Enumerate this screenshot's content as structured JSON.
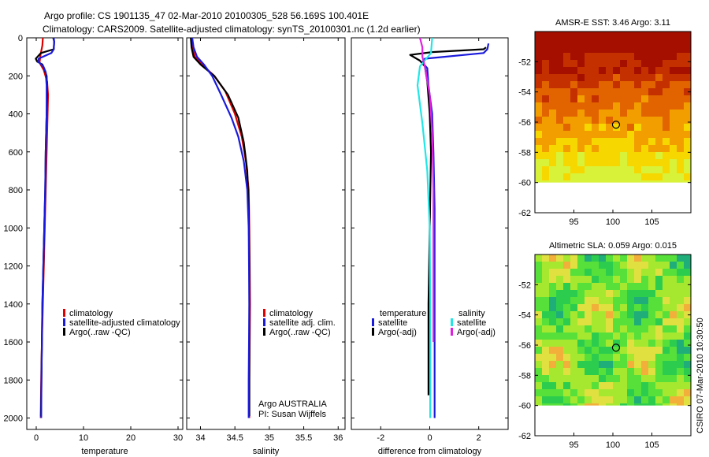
{
  "header": {
    "line1": "Argo profile: CS 1901135_47 02-Mar-2010 20100305_528 56.169S 100.401E",
    "line2": "Climatology: CARS2009. Satellite-adjusted climatology: synTS_20100301.nc (1.2d earlier)"
  },
  "side_label": "CSIRO 07-Mar-2010 10:30:50",
  "colors": {
    "red": "#e00000",
    "blue": "#1a1adc",
    "black": "#000000",
    "cyan": "#22e6e6",
    "magenta": "#e020e0"
  },
  "chart_data": [
    {
      "type": "line",
      "id": "temperature",
      "xlabel": "temperature",
      "ylabel": "",
      "xlim": [
        -2,
        31
      ],
      "ylim": [
        2060,
        0
      ],
      "xticks": [
        0,
        10,
        20,
        30
      ],
      "yticks": [
        0,
        200,
        400,
        600,
        800,
        1000,
        1200,
        1400,
        1600,
        1800,
        2000
      ],
      "legend": {
        "placement": "lower-right",
        "entries": [
          "climatology",
          "satellite-adjusted climatology",
          "Argo(..raw -QC)"
        ]
      },
      "series": [
        {
          "name": "climatology",
          "color": "red",
          "points": [
            [
              1.4,
              0
            ],
            [
              1.3,
              40
            ],
            [
              0.9,
              90
            ],
            [
              0.7,
              130
            ],
            [
              1.6,
              170
            ],
            [
              2.3,
              230
            ],
            [
              2.5,
              300
            ],
            [
              2.4,
              400
            ],
            [
              2.2,
              600
            ],
            [
              2.0,
              800
            ],
            [
              1.8,
              1000
            ],
            [
              1.6,
              1200
            ],
            [
              1.4,
              1400
            ],
            [
              1.2,
              1600
            ],
            [
              1.05,
              1800
            ],
            [
              0.95,
              2000
            ]
          ]
        },
        {
          "name": "Argo(..raw -QC)",
          "color": "black",
          "points": [
            [
              3.6,
              0
            ],
            [
              3.8,
              20
            ],
            [
              3.7,
              60
            ],
            [
              1.0,
              80
            ],
            [
              -0.1,
              110
            ],
            [
              0.2,
              125
            ],
            [
              1.3,
              140
            ],
            [
              1.8,
              170
            ],
            [
              2.2,
              200
            ],
            [
              2.3,
              300
            ],
            [
              2.2,
              400
            ],
            [
              2.0,
              600
            ],
            [
              1.9,
              800
            ],
            [
              1.7,
              1000
            ],
            [
              1.5,
              1200
            ],
            [
              1.3,
              1400
            ],
            [
              1.2,
              1600
            ],
            [
              1.1,
              1800
            ],
            [
              1.0,
              1990
            ]
          ]
        },
        {
          "name": "satellite-adjusted climatology",
          "color": "blue",
          "points": [
            [
              3.7,
              0
            ],
            [
              3.8,
              20
            ],
            [
              3.7,
              60
            ],
            [
              3.2,
              80
            ],
            [
              0.5,
              110
            ],
            [
              0.4,
              125
            ],
            [
              1.5,
              150
            ],
            [
              2.0,
              180
            ],
            [
              2.2,
              250
            ],
            [
              2.2,
              400
            ],
            [
              2.0,
              600
            ],
            [
              1.9,
              800
            ],
            [
              1.7,
              1000
            ],
            [
              1.5,
              1200
            ],
            [
              1.3,
              1400
            ],
            [
              1.2,
              1600
            ],
            [
              1.1,
              1800
            ],
            [
              1.05,
              2000
            ]
          ]
        }
      ]
    },
    {
      "type": "line",
      "id": "salinity",
      "xlabel": "salinity",
      "ylabel": "",
      "xlim": [
        33.8,
        36.1
      ],
      "ylim": [
        2060,
        0
      ],
      "xticks": [
        34,
        34.5,
        35,
        35.5,
        36
      ],
      "yticks": [
        0,
        200,
        400,
        600,
        800,
        1000,
        1200,
        1400,
        1600,
        1800,
        2000
      ],
      "legend": {
        "placement": "lower-right",
        "entries": [
          "climatology",
          "satellite adj. clim.",
          "Argo(..raw -QC)"
        ]
      },
      "annotations": [
        "Argo AUSTRALIA",
        "PI: Susan Wijffels"
      ],
      "series": [
        {
          "name": "climatology",
          "color": "red",
          "points": [
            [
              33.87,
              0
            ],
            [
              33.88,
              50
            ],
            [
              33.92,
              100
            ],
            [
              34.02,
              140
            ],
            [
              34.2,
              200
            ],
            [
              34.36,
              280
            ],
            [
              34.5,
              400
            ],
            [
              34.6,
              520
            ],
            [
              34.66,
              650
            ],
            [
              34.7,
              800
            ],
            [
              34.71,
              1000
            ],
            [
              34.72,
              1400
            ],
            [
              34.71,
              1800
            ],
            [
              34.71,
              2000
            ]
          ]
        },
        {
          "name": "Argo(..raw -QC)",
          "color": "black",
          "points": [
            [
              33.86,
              0
            ],
            [
              33.87,
              50
            ],
            [
              33.9,
              100
            ],
            [
              34.0,
              140
            ],
            [
              34.2,
              200
            ],
            [
              34.4,
              300
            ],
            [
              34.55,
              420
            ],
            [
              34.63,
              550
            ],
            [
              34.68,
              700
            ],
            [
              34.7,
              900
            ],
            [
              34.71,
              1200
            ],
            [
              34.71,
              1600
            ],
            [
              34.71,
              1990
            ]
          ]
        },
        {
          "name": "satellite adj. clim.",
          "color": "blue",
          "points": [
            [
              33.88,
              0
            ],
            [
              33.9,
              50
            ],
            [
              33.95,
              100
            ],
            [
              34.05,
              140
            ],
            [
              34.17,
              200
            ],
            [
              34.3,
              300
            ],
            [
              34.45,
              420
            ],
            [
              34.55,
              520
            ],
            [
              34.63,
              650
            ],
            [
              34.68,
              800
            ],
            [
              34.7,
              1000
            ],
            [
              34.71,
              1400
            ],
            [
              34.7,
              1800
            ],
            [
              34.7,
              2000
            ]
          ]
        }
      ]
    },
    {
      "type": "line",
      "id": "difference",
      "xlabel": "difference from climatology",
      "ylabel": "",
      "xlim": [
        -3.2,
        3.2
      ],
      "ylim": [
        2060,
        0
      ],
      "xticks": [
        -2,
        0,
        2
      ],
      "yticks": [
        0,
        200,
        400,
        600,
        800,
        1000,
        1200,
        1400,
        1600,
        1800,
        2000
      ],
      "legend": {
        "placement": "lower-center",
        "columns": [
          [
            "temperature",
            "satellite",
            "Argo(-adj)"
          ],
          [
            "salinity",
            "satellite",
            "Argo(-adj)"
          ]
        ]
      },
      "series": [
        {
          "name": "temperature satellite",
          "color": "blue",
          "points": [
            [
              2.4,
              30
            ],
            [
              2.35,
              60
            ],
            [
              2.2,
              80
            ],
            [
              -0.2,
              110
            ],
            [
              -0.3,
              130
            ],
            [
              -0.1,
              160
            ],
            [
              -0.05,
              250
            ],
            [
              0.1,
              400
            ],
            [
              0.15,
              600
            ],
            [
              0.2,
              900
            ],
            [
              0.2,
              1200
            ],
            [
              0.2,
              1500
            ],
            [
              0.2,
              1800
            ],
            [
              0.2,
              2000
            ]
          ]
        },
        {
          "name": "temperature Argo(-adj)",
          "color": "black",
          "points": [
            [
              2.3,
              50
            ],
            [
              2.2,
              60
            ],
            [
              0.1,
              75
            ],
            [
              -0.8,
              90
            ],
            [
              -0.4,
              120
            ],
            [
              -0.2,
              150
            ],
            [
              -0.1,
              230
            ],
            [
              0.0,
              400
            ],
            [
              0.05,
              600
            ],
            [
              0.0,
              1000
            ],
            [
              -0.05,
              1400
            ],
            [
              -0.05,
              1800
            ],
            [
              -0.05,
              1880
            ]
          ]
        },
        {
          "name": "salinity satellite",
          "color": "cyan",
          "points": [
            [
              0.1,
              0
            ],
            [
              0.05,
              80
            ],
            [
              -0.4,
              150
            ],
            [
              -0.5,
              250
            ],
            [
              -0.3,
              450
            ],
            [
              -0.1,
              700
            ],
            [
              0.0,
              1000
            ],
            [
              0.02,
              1400
            ],
            [
              0.02,
              2000
            ]
          ]
        },
        {
          "name": "salinity Argo(-adj)",
          "color": "magenta",
          "points": [
            [
              -0.4,
              0
            ],
            [
              -0.3,
              50
            ],
            [
              -0.3,
              100
            ],
            [
              -0.2,
              150
            ],
            [
              0.0,
              300
            ],
            [
              0.1,
              500
            ],
            [
              0.15,
              800
            ],
            [
              0.15,
              1200
            ],
            [
              0.15,
              1600
            ]
          ]
        }
      ]
    },
    {
      "type": "heatmap",
      "id": "sst-map",
      "title": "AMSR-E SST: 3.46 Argo: 3.11",
      "xlim": [
        90,
        110
      ],
      "ylim": [
        -62,
        -50
      ],
      "xticks": [
        95,
        100,
        105
      ],
      "yticks": [
        -52,
        -54,
        -56,
        -58,
        -60,
        -62
      ],
      "marker": {
        "lon": 100.4,
        "lat": -56.17
      },
      "data_lat_min": -60,
      "colors": [
        "#a40f00",
        "#c43000",
        "#e26400",
        "#f29e00",
        "#f6d800",
        "#d8f23a"
      ]
    },
    {
      "type": "heatmap",
      "id": "sla-map",
      "title": "Altimetric SLA: 0.059 Argo: 0.015",
      "xlim": [
        90,
        110
      ],
      "ylim": [
        -62,
        -50
      ],
      "xticks": [
        95,
        100,
        105
      ],
      "yticks": [
        -52,
        -54,
        -56,
        -58,
        -60,
        -62
      ],
      "marker": {
        "lon": 100.4,
        "lat": -56.17
      },
      "data_lat_min": -60,
      "colors": [
        "#1fae7a",
        "#2ccd4e",
        "#58e03a",
        "#a6e830",
        "#e0e040",
        "#f2b03a"
      ]
    }
  ]
}
